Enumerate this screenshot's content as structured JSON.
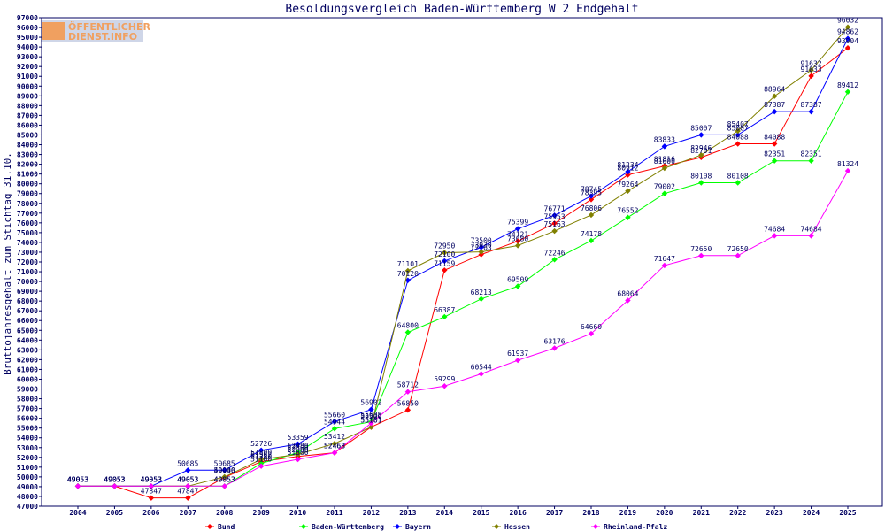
{
  "logo": {
    "line1": "ÖFFENTLICHER",
    "line2": "DIENST.INFO",
    "accent": "#f0a060",
    "bg": "#cfd6e8"
  },
  "chart_data": {
    "type": "line",
    "title": "Besoldungsvergleich Baden-Württemberg W 2 Endgehalt",
    "xlabel": "",
    "ylabel": "Bruttojahresgehalt zum Stichtag 31.10.",
    "ylim": [
      47000,
      97000
    ],
    "ytick_step": 1000,
    "grid": false,
    "legend_position": "bottom",
    "categories": [
      "2004",
      "2005",
      "2006",
      "2007",
      "2008",
      "2009",
      "2010",
      "2011",
      "2012",
      "2013",
      "2014",
      "2015",
      "2016",
      "2017",
      "2018",
      "2019",
      "2020",
      "2021",
      "2022",
      "2023",
      "2024",
      "2025"
    ],
    "series": [
      {
        "name": "Bund",
        "color": "#ff0000",
        "values": [
          49053,
          49053,
          47847,
          47847,
          49946,
          51562,
          52090,
          52468,
          55101,
          56850,
          71159,
          72763,
          74121,
          75953,
          78395,
          80912,
          81816,
          82701,
          84088,
          84088,
          91033,
          93904
        ]
      },
      {
        "name": "Baden-Württemberg",
        "color": "#00ff00",
        "values": [
          49053,
          49053,
          49053,
          49053,
          49053,
          51380,
          52480,
          54944,
          55638,
          64800,
          66387,
          68213,
          69509,
          72246,
          74178,
          76552,
          79002,
          80108,
          80108,
          82351,
          82351,
          89412
        ]
      },
      {
        "name": "Bayern",
        "color": "#0000ff",
        "values": [
          49053,
          49053,
          49053,
          50685,
          50685,
          52726,
          53359,
          55660,
          56902,
          70120,
          72100,
          73500,
          75399,
          76771,
          78745,
          81234,
          83833,
          85007,
          85007,
          87387,
          87387,
          94862
        ]
      },
      {
        "name": "Hessen",
        "color": "#808000",
        "values": [
          49053,
          49053,
          49053,
          49053,
          50000,
          51800,
          52300,
          53412,
          55101,
          71101,
          72950,
          73030,
          73680,
          75163,
          76806,
          79264,
          81600,
          82946,
          85407,
          88964,
          91632,
          96032
        ]
      },
      {
        "name": "Rheinland-Pfalz",
        "color": "#ff00ff",
        "values": [
          49053,
          49053,
          49053,
          49053,
          49053,
          51100,
          51800,
          52468,
          55500,
          58712,
          59299,
          60544,
          61937,
          63176,
          64660,
          68064,
          71647,
          72650,
          72650,
          74684,
          74684,
          81324
        ]
      }
    ]
  }
}
